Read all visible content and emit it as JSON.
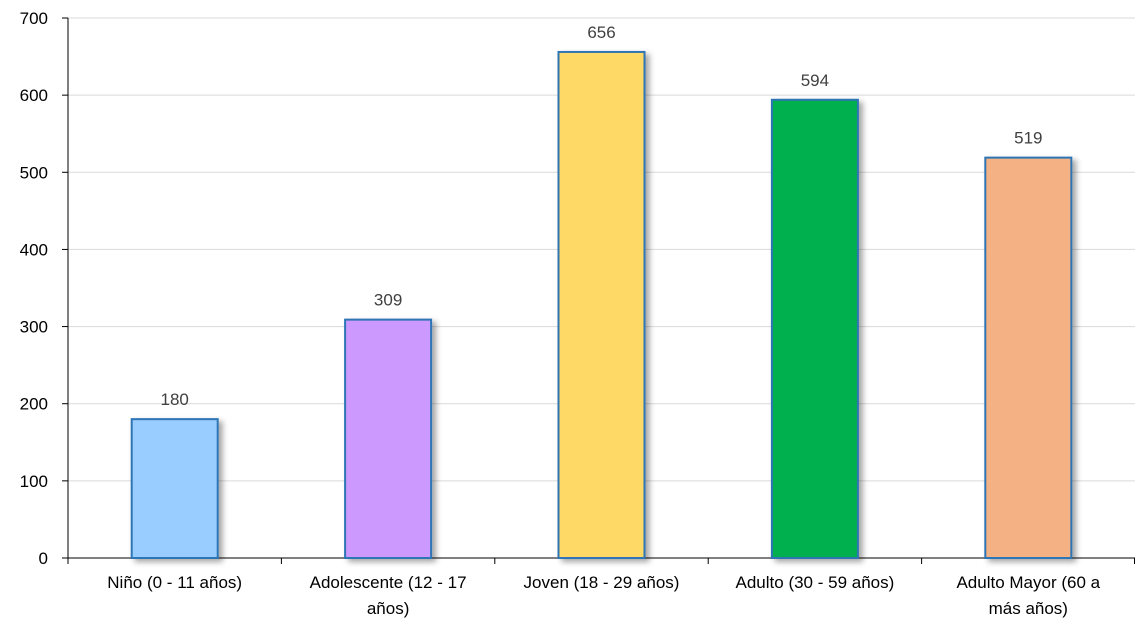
{
  "chart_data": {
    "type": "bar",
    "categories": [
      [
        "Niño (0 - 11 años)"
      ],
      [
        "Adolescente (12 - 17",
        "años)"
      ],
      [
        "Joven (18 - 29 años)"
      ],
      [
        "Adulto (30 - 59 años)"
      ],
      [
        "Adulto Mayor (60 a",
        "más años)"
      ]
    ],
    "values": [
      180,
      309,
      656,
      594,
      519
    ],
    "colors": [
      "#99CCFF",
      "#CC99FF",
      "#FFD966",
      "#00B050",
      "#F4B183"
    ],
    "border_color": "#2E75B6",
    "data_labels": [
      "180",
      "309",
      "656",
      "594",
      "519"
    ],
    "yticks": [
      "0",
      "100",
      "200",
      "300",
      "400",
      "500",
      "600",
      "700"
    ],
    "ylim": [
      0,
      700
    ],
    "grid": true,
    "title": "",
    "xlabel": "",
    "ylabel": ""
  }
}
